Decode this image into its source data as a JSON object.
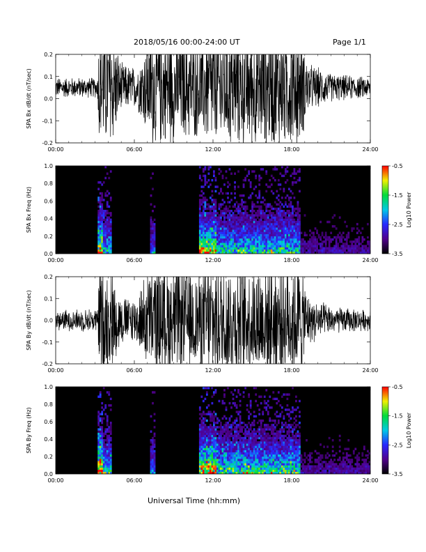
{
  "header": {
    "title": "2018/05/16  00:00-24:00 UT",
    "page": "Page 1/1"
  },
  "xaxis_title": "Universal Time (hh:mm)",
  "chart_data": [
    {
      "type": "line",
      "ylabel": "SPA Bx dB/dt (nT/sec)",
      "x_ticks": [
        "00:00",
        "06:00",
        "12:00",
        "18:00",
        "24:00"
      ],
      "xlim": [
        0,
        24
      ],
      "ylim": [
        -0.2,
        0.2
      ],
      "y_ticks": [
        "-0.2",
        "-0.1",
        "0.0",
        "0.1",
        "0.2"
      ],
      "grid": false,
      "baseline": 0.05,
      "envelope": [
        {
          "x": 0.0,
          "amp": 0.05
        },
        {
          "x": 3.2,
          "amp": 0.05
        },
        {
          "x": 3.3,
          "amp": 0.3
        },
        {
          "x": 4.3,
          "amp": 0.3
        },
        {
          "x": 5.0,
          "amp": 0.12
        },
        {
          "x": 6.2,
          "amp": 0.1
        },
        {
          "x": 7.3,
          "amp": 0.3
        },
        {
          "x": 11.0,
          "amp": 0.25
        },
        {
          "x": 11.6,
          "amp": 0.3
        },
        {
          "x": 18.6,
          "amp": 0.3
        },
        {
          "x": 19.3,
          "amp": 0.12
        },
        {
          "x": 21.0,
          "amp": 0.07
        },
        {
          "x": 24.0,
          "amp": 0.05
        }
      ]
    },
    {
      "type": "heatmap",
      "ylabel": "SPA Bx Freq (Hz)",
      "x_ticks": [
        "00:00",
        "06:00",
        "12:00",
        "18:00",
        "24:00"
      ],
      "xlim": [
        0,
        24
      ],
      "ylim": [
        0,
        1.0
      ],
      "y_ticks": [
        "0.0",
        "0.2",
        "0.4",
        "0.6",
        "0.8",
        "1.0"
      ],
      "colorbar": {
        "label": "Log10 Power",
        "range": [
          -3.5,
          -0.5
        ],
        "ticks": [
          "-0.5",
          "-1.5",
          "-2.5",
          "-3.5"
        ]
      },
      "active_bands": [
        {
          "x0": 3.2,
          "x1": 3.55,
          "level": 0.95
        },
        {
          "x0": 3.55,
          "x1": 4.2,
          "level": 0.55
        },
        {
          "x0": 7.2,
          "x1": 7.6,
          "level": 0.4
        },
        {
          "x0": 11.0,
          "x1": 12.3,
          "level": 0.85
        },
        {
          "x0": 12.3,
          "x1": 18.6,
          "level": 0.6
        },
        {
          "x0": 18.6,
          "x1": 24.0,
          "level": 0.2
        }
      ]
    },
    {
      "type": "line",
      "ylabel": "SPA By dB/dt (nT/sec)",
      "x_ticks": [
        "00:00",
        "06:00",
        "12:00",
        "18:00",
        "24:00"
      ],
      "xlim": [
        0,
        24
      ],
      "ylim": [
        -0.2,
        0.2
      ],
      "y_ticks": [
        "-0.2",
        "-0.1",
        "0.0",
        "0.1",
        "0.2"
      ],
      "grid": false,
      "baseline": 0.0,
      "envelope": [
        {
          "x": 0.0,
          "amp": 0.05
        },
        {
          "x": 3.2,
          "amp": 0.06
        },
        {
          "x": 3.3,
          "amp": 0.3
        },
        {
          "x": 4.3,
          "amp": 0.25
        },
        {
          "x": 5.0,
          "amp": 0.12
        },
        {
          "x": 6.2,
          "amp": 0.12
        },
        {
          "x": 7.3,
          "amp": 0.3
        },
        {
          "x": 11.0,
          "amp": 0.25
        },
        {
          "x": 11.6,
          "amp": 0.3
        },
        {
          "x": 18.6,
          "amp": 0.3
        },
        {
          "x": 19.3,
          "amp": 0.12
        },
        {
          "x": 21.0,
          "amp": 0.07
        },
        {
          "x": 24.0,
          "amp": 0.05
        }
      ]
    },
    {
      "type": "heatmap",
      "ylabel": "SPA By Freq (Hz)",
      "x_ticks": [
        "00:00",
        "06:00",
        "12:00",
        "18:00",
        "24:00"
      ],
      "xlim": [
        0,
        24
      ],
      "ylim": [
        0,
        1.0
      ],
      "y_ticks": [
        "0.0",
        "0.2",
        "0.4",
        "0.6",
        "0.8",
        "1.0"
      ],
      "colorbar": {
        "label": "Log10 Power",
        "range": [
          -3.5,
          -0.5
        ],
        "ticks": [
          "-0.5",
          "-1.5",
          "-2.5",
          "-3.5"
        ]
      },
      "active_bands": [
        {
          "x0": 3.2,
          "x1": 3.55,
          "level": 1.0
        },
        {
          "x0": 3.55,
          "x1": 4.2,
          "level": 0.6
        },
        {
          "x0": 7.2,
          "x1": 7.6,
          "level": 0.45
        },
        {
          "x0": 11.0,
          "x1": 12.3,
          "level": 0.9
        },
        {
          "x0": 12.3,
          "x1": 18.6,
          "level": 0.65
        },
        {
          "x0": 18.6,
          "x1": 24.0,
          "level": 0.2
        }
      ]
    }
  ]
}
